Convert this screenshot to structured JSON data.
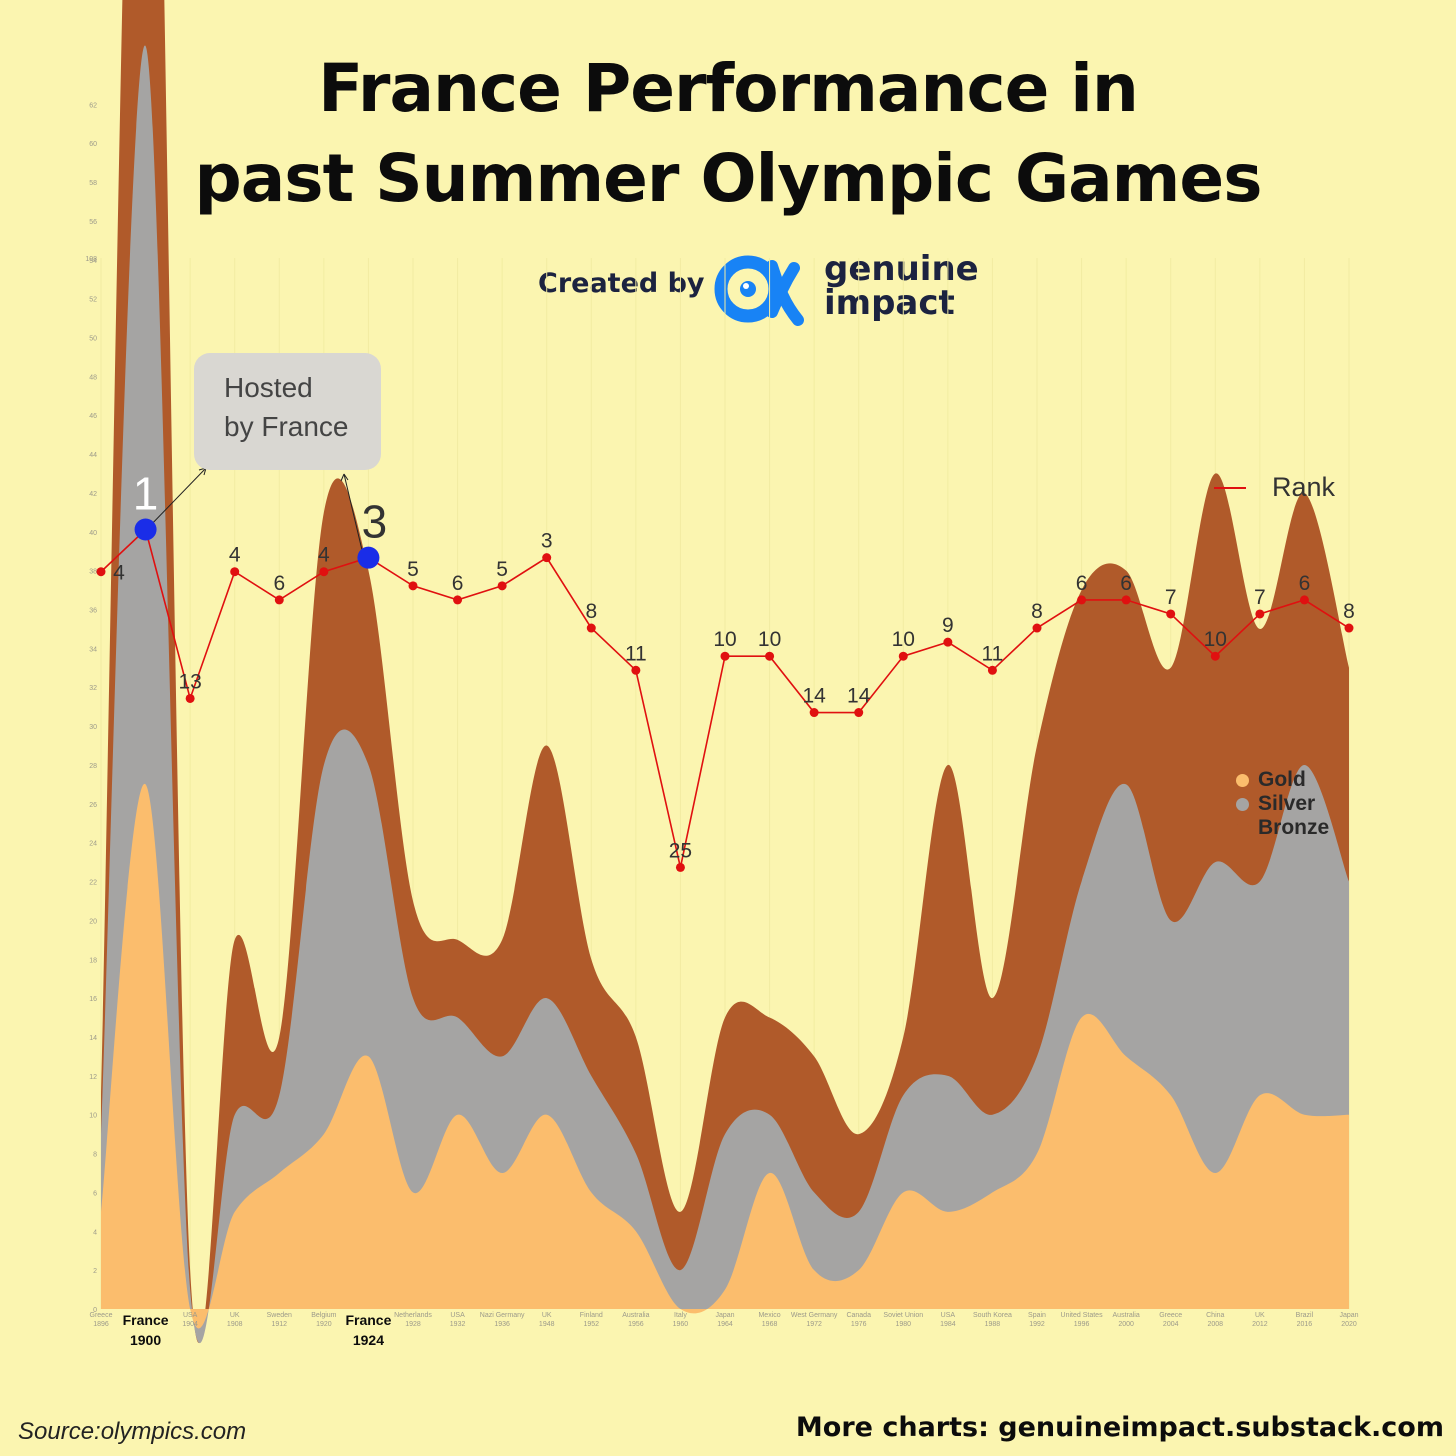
{
  "header": {
    "title_line1": "France Performance in",
    "title_line2": "past Summer Olympic Games",
    "created_by": "Created by",
    "brand_line1": "genuine",
    "brand_line2": "impact"
  },
  "annotation": {
    "line1": "Hosted",
    "line2": "by France"
  },
  "footer": {
    "source": "Source:olympics.com",
    "more": "More charts: genuineimpact.substack.com"
  },
  "colors": {
    "background": "#fbf5b0",
    "gold": "#fbbd6d",
    "silver": "#a5a4a3",
    "bronze": "#b05a2a",
    "rank_line": "#e01010",
    "host_marker": "#1a2de8"
  },
  "chart_data": [
    {
      "type": "area",
      "stacked": true,
      "title": "",
      "xlabel": "",
      "ylabel": "",
      "ylim": [
        0,
        108
      ],
      "yticks": [
        0,
        2,
        4,
        6,
        8,
        10,
        12,
        14,
        16,
        18,
        20,
        22,
        24,
        26,
        28,
        30,
        32,
        34,
        36,
        38,
        40,
        42,
        44,
        46,
        48,
        50,
        52,
        54,
        56,
        58,
        60,
        62,
        108
      ],
      "legend": "right",
      "categories": [
        {
          "host": "Greece",
          "year": "1896"
        },
        {
          "host": "France",
          "year": "1900"
        },
        {
          "host": "USA",
          "year": "1904"
        },
        {
          "host": "UK",
          "year": "1908"
        },
        {
          "host": "Sweden",
          "year": "1912"
        },
        {
          "host": "Belgium",
          "year": "1920"
        },
        {
          "host": "France",
          "year": "1924"
        },
        {
          "host": "Netherlands",
          "year": "1928"
        },
        {
          "host": "USA",
          "year": "1932"
        },
        {
          "host": "Nazi Germany",
          "year": "1936"
        },
        {
          "host": "UK",
          "year": "1948"
        },
        {
          "host": "Finland",
          "year": "1952"
        },
        {
          "host": "Australia",
          "year": "1956"
        },
        {
          "host": "Italy",
          "year": "1960"
        },
        {
          "host": "Japan",
          "year": "1964"
        },
        {
          "host": "Mexico",
          "year": "1968"
        },
        {
          "host": "West Germany",
          "year": "1972"
        },
        {
          "host": "Canada",
          "year": "1976"
        },
        {
          "host": "Soviet Union",
          "year": "1980"
        },
        {
          "host": "USA",
          "year": "1984"
        },
        {
          "host": "South Korea",
          "year": "1988"
        },
        {
          "host": "Spain",
          "year": "1992"
        },
        {
          "host": "United States",
          "year": "1996"
        },
        {
          "host": "Australia",
          "year": "2000"
        },
        {
          "host": "Greece",
          "year": "2004"
        },
        {
          "host": "China",
          "year": "2008"
        },
        {
          "host": "UK",
          "year": "2012"
        },
        {
          "host": "Brazil",
          "year": "2016"
        },
        {
          "host": "Japan",
          "year": "2020"
        }
      ],
      "host_editions": [
        1,
        6
      ],
      "series": [
        {
          "name": "Gold",
          "values": [
            5,
            27,
            0,
            5,
            7,
            9,
            13,
            6,
            10,
            7,
            10,
            6,
            4,
            0,
            1,
            7,
            2,
            2,
            6,
            5,
            6,
            8,
            15,
            13,
            11,
            7,
            11,
            10,
            10
          ]
        },
        {
          "name": "Silver",
          "values": [
            4,
            38,
            1,
            5,
            4,
            19,
            15,
            10,
            5,
            6,
            6,
            6,
            4,
            2,
            8,
            3,
            4,
            3,
            5,
            7,
            4,
            5,
            7,
            14,
            9,
            16,
            11,
            18,
            12
          ]
        },
        {
          "name": "Bronze",
          "values": [
            2,
            37,
            1,
            9,
            3,
            13,
            10,
            5,
            4,
            6,
            13,
            6,
            6,
            3,
            6,
            5,
            7,
            4,
            3,
            16,
            6,
            16,
            15,
            11,
            13,
            20,
            13,
            14,
            11
          ]
        }
      ]
    },
    {
      "type": "line",
      "name": "Rank",
      "legend": "top-right",
      "values": [
        4,
        1,
        13,
        4,
        6,
        4,
        3,
        5,
        6,
        5,
        3,
        8,
        11,
        25,
        10,
        10,
        14,
        14,
        10,
        9,
        11,
        8,
        6,
        6,
        7,
        10,
        7,
        6,
        8
      ]
    }
  ]
}
